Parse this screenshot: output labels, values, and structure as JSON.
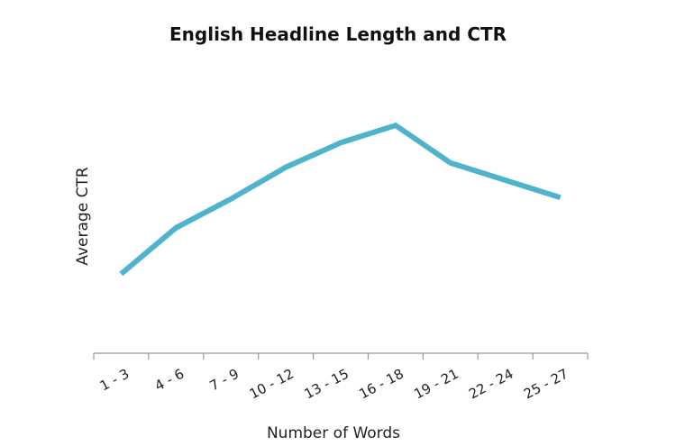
{
  "chart_data": {
    "type": "line",
    "title": "English Headline Length and CTR",
    "xlabel": "Number of Words",
    "ylabel": "Average CTR",
    "categories": [
      "1 - 3",
      "4 - 6",
      "7 - 9",
      "10 - 12",
      "13 - 15",
      "16 - 18",
      "19 - 21",
      "22 - 24",
      "25 - 27"
    ],
    "series": [
      {
        "values": [
          0.15,
          0.47,
          0.67,
          0.89,
          1.06,
          1.18,
          0.92,
          0.8,
          0.68
        ]
      }
    ],
    "ylim": [
      -0.4,
      1.55
    ],
    "grid": false,
    "y_ticks_shown": false,
    "legend": "none",
    "colors": {
      "line": "#4FB3CC",
      "axis": "#999999",
      "text": "#222222"
    }
  }
}
